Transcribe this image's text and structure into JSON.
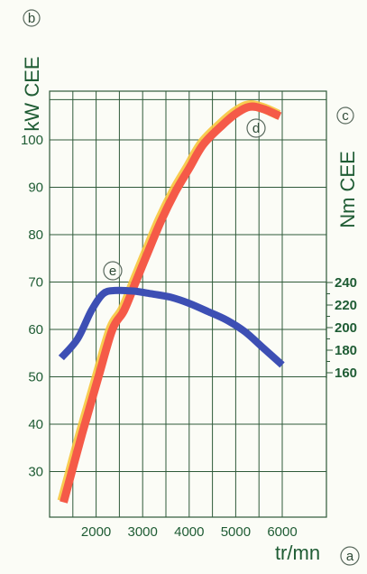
{
  "colors": {
    "background": "#fbfcf6",
    "grid": "#2f5a3a",
    "text_green": "#1f5c34",
    "power_curve": "#f55a48",
    "power_highlight": "#f7c63e",
    "torque_curve": "#3d4fb4",
    "marker_ring": "#5a6a5e"
  },
  "labels": {
    "left_axis_title": "kW CEE",
    "right_axis_title": "Nm CEE",
    "x_axis_title": "tr/mn",
    "marker_a": "a",
    "marker_b": "b",
    "marker_c": "c",
    "marker_d": "d",
    "marker_e": "e"
  },
  "chart_data": {
    "type": "line",
    "x": {
      "label": "tr/mn",
      "range": [
        1000,
        6500
      ],
      "ticks": [
        2000,
        3000,
        4000,
        5000,
        6000
      ]
    },
    "y_left": {
      "label": "kW CEE",
      "range": [
        20,
        110
      ],
      "ticks": [
        30,
        40,
        50,
        60,
        70,
        80,
        90,
        100
      ]
    },
    "y_right": {
      "label": "Nm CEE",
      "ticks": [
        160,
        180,
        200,
        220,
        240
      ]
    },
    "grid": true,
    "series": [
      {
        "key": "power",
        "axis": "left",
        "marker": "d",
        "points": [
          [
            1300,
            23.5
          ],
          [
            1700,
            38
          ],
          [
            2050,
            50
          ],
          [
            2350,
            60
          ],
          [
            2600,
            64
          ],
          [
            2850,
            70
          ],
          [
            3100,
            76
          ],
          [
            3400,
            83
          ],
          [
            3700,
            89
          ],
          [
            4000,
            94
          ],
          [
            4300,
            99
          ],
          [
            4700,
            103
          ],
          [
            5000,
            105.5
          ],
          [
            5300,
            107
          ],
          [
            5600,
            106.5
          ],
          [
            5950,
            105
          ]
        ]
      },
      {
        "key": "torque",
        "axis": "right",
        "marker": "e",
        "points": [
          [
            1250,
            54
          ],
          [
            1600,
            58
          ],
          [
            1900,
            64
          ],
          [
            2150,
            67.5
          ],
          [
            2400,
            68.2
          ],
          [
            2800,
            68.1
          ],
          [
            3200,
            67.5
          ],
          [
            3600,
            66.8
          ],
          [
            4000,
            65.5
          ],
          [
            4400,
            63.8
          ],
          [
            4800,
            62
          ],
          [
            5200,
            59.5
          ],
          [
            5600,
            56
          ],
          [
            6000,
            52.5
          ]
        ]
      }
    ]
  }
}
